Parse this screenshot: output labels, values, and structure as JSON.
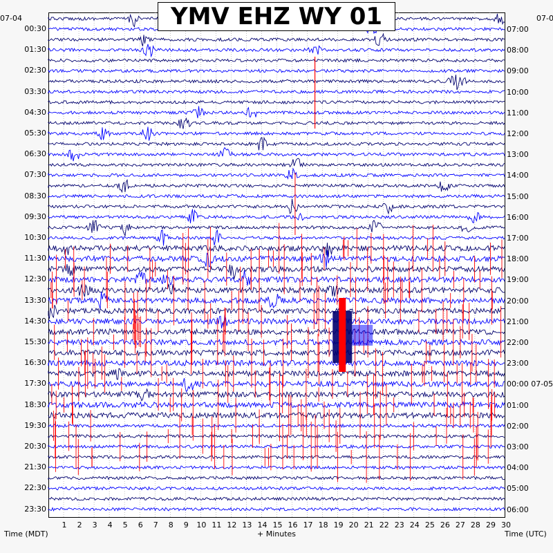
{
  "title": "YMV EHZ WY 01",
  "start_date_left": "07-04",
  "start_date_right": "07-0",
  "left_axis_label": "Time (MDT)",
  "right_axis_label": "Time (UTC)",
  "x_axis_label": "+ Minutes",
  "colors": {
    "trace_dark": "#00006e",
    "trace_blue": "#0000ff",
    "event_red": "#ff0000",
    "background": "#f7f7f7"
  },
  "chart_data": {
    "type": "line",
    "title": "YMV EHZ WY 01",
    "xlabel": "+ Minutes",
    "ylabel_left": "Time (MDT)",
    "ylabel_right": "Time (UTC)",
    "xlim": [
      0,
      30
    ],
    "x_ticks": [
      "1",
      "2",
      "3",
      "4",
      "5",
      "6",
      "7",
      "8",
      "9",
      "10",
      "11",
      "12",
      "13",
      "14",
      "15",
      "16",
      "17",
      "18",
      "19",
      "20",
      "21",
      "22",
      "23",
      "24",
      "25",
      "26",
      "27",
      "28",
      "29",
      "30"
    ],
    "rows_per_hour": 2,
    "row_count": 48,
    "left_ticks": [
      "00:30",
      "01:30",
      "02:30",
      "03:30",
      "04:30",
      "05:30",
      "06:30",
      "07:30",
      "08:30",
      "09:30",
      "10:30",
      "11:30",
      "12:30",
      "13:30",
      "14:30",
      "15:30",
      "16:30",
      "17:30",
      "18:30",
      "19:30",
      "20:30",
      "21:30",
      "22:30",
      "23:30"
    ],
    "right_ticks": [
      "07:00",
      "08:00",
      "09:00",
      "10:00",
      "11:00",
      "12:00",
      "13:00",
      "14:00",
      "15:00",
      "16:00",
      "17:00",
      "18:00",
      "19:00",
      "20:00",
      "21:00",
      "22:00",
      "23:00",
      "00:00 07-05",
      "01:00",
      "02:00",
      "03:00",
      "04:00",
      "05:00",
      "06:00"
    ],
    "grid": true,
    "trace_colors_cycle": [
      "#00006e",
      "#0000ff"
    ],
    "clipped_event": {
      "time_mdt_row_start": "13:30",
      "time_mdt_row_end": "16:30",
      "minute": 19.3,
      "color": "#ff0000"
    }
  }
}
